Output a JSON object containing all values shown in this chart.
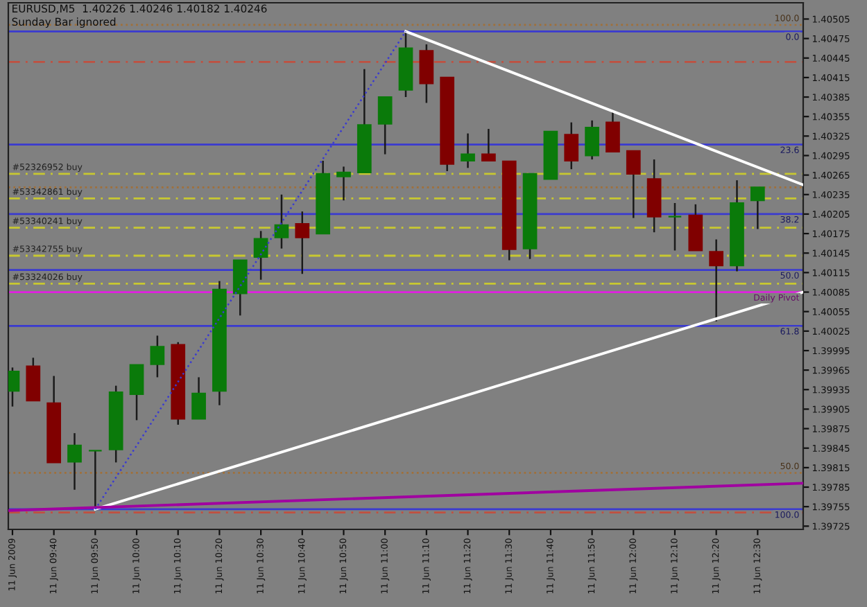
{
  "chart_data": {
    "type": "candlestick",
    "title": "EURUSD,M5  1.40226 1.40246 1.40182 1.40246",
    "subtitle": "Sunday Bar ignored",
    "x": [
      "2009-06-11T09:30",
      "2009-06-11T09:35",
      "2009-06-11T09:40",
      "2009-06-11T09:45",
      "2009-06-11T09:50",
      "2009-06-11T09:55",
      "2009-06-11T10:00",
      "2009-06-11T10:05",
      "2009-06-11T10:10",
      "2009-06-11T10:15",
      "2009-06-11T10:20",
      "2009-06-11T10:25",
      "2009-06-11T10:30",
      "2009-06-11T10:35",
      "2009-06-11T10:40",
      "2009-06-11T10:45",
      "2009-06-11T10:50",
      "2009-06-11T10:55",
      "2009-06-11T11:00",
      "2009-06-11T11:05",
      "2009-06-11T11:10",
      "2009-06-11T11:15",
      "2009-06-11T11:20",
      "2009-06-11T11:25",
      "2009-06-11T11:30",
      "2009-06-11T11:35",
      "2009-06-11T11:40",
      "2009-06-11T11:45",
      "2009-06-11T11:50",
      "2009-06-11T11:55",
      "2009-06-11T12:00",
      "2009-06-11T12:05",
      "2009-06-11T12:10",
      "2009-06-11T12:15",
      "2009-06-11T12:20",
      "2009-06-11T12:25",
      "2009-06-11T12:30"
    ],
    "ohlc": [
      [
        1.39933,
        1.39969,
        1.39909,
        1.39963
      ],
      [
        1.39971,
        1.39984,
        1.39918,
        1.39918
      ],
      [
        1.39914,
        1.39956,
        1.39823,
        1.39823
      ],
      [
        1.39824,
        1.39868,
        1.39781,
        1.39849
      ],
      [
        1.39841,
        1.39841,
        1.39751,
        1.39841
      ],
      [
        1.39843,
        1.39941,
        1.39823,
        1.39931
      ],
      [
        1.39928,
        1.39973,
        1.39888,
        1.39973
      ],
      [
        1.39974,
        1.40018,
        1.39954,
        1.40001
      ],
      [
        1.40004,
        1.40008,
        1.39881,
        1.3989
      ],
      [
        1.3989,
        1.39954,
        1.3989,
        1.39929
      ],
      [
        1.39933,
        1.40102,
        1.39911,
        1.40089
      ],
      [
        1.40083,
        1.40134,
        1.40049,
        1.40134
      ],
      [
        1.40139,
        1.40179,
        1.40104,
        1.40167
      ],
      [
        1.40169,
        1.40235,
        1.40152,
        1.40188
      ],
      [
        1.4019,
        1.40209,
        1.40113,
        1.40169
      ],
      [
        1.40175,
        1.40287,
        1.40175,
        1.40267
      ],
      [
        1.40263,
        1.40278,
        1.40226,
        1.40269
      ],
      [
        1.40269,
        1.40428,
        1.40269,
        1.40342
      ],
      [
        1.40344,
        1.40385,
        1.40297,
        1.40385
      ],
      [
        1.40396,
        1.40486,
        1.40385,
        1.4046
      ],
      [
        1.40456,
        1.40466,
        1.40376,
        1.40406
      ],
      [
        1.40415,
        1.40415,
        1.40271,
        1.40282
      ],
      [
        1.40287,
        1.40329,
        1.40276,
        1.40297
      ],
      [
        1.40297,
        1.40336,
        1.40287,
        1.40287
      ],
      [
        1.40286,
        1.40286,
        1.40134,
        1.40151
      ],
      [
        1.40152,
        1.40267,
        1.40136,
        1.40267
      ],
      [
        1.40259,
        1.40332,
        1.40259,
        1.40332
      ],
      [
        1.40327,
        1.40346,
        1.40274,
        1.40287
      ],
      [
        1.40295,
        1.40349,
        1.40289,
        1.40338
      ],
      [
        1.40346,
        1.40362,
        1.40301,
        1.40301
      ],
      [
        1.40302,
        1.40302,
        1.40199,
        1.40267
      ],
      [
        1.40259,
        1.40289,
        1.40177,
        1.40201
      ],
      [
        1.40201,
        1.40222,
        1.40149,
        1.40201
      ],
      [
        1.40203,
        1.4022,
        1.40149,
        1.40149
      ],
      [
        1.40147,
        1.40166,
        1.4004,
        1.40126
      ],
      [
        1.40126,
        1.40257,
        1.40117,
        1.40222
      ],
      [
        1.40226,
        1.40246,
        1.40182,
        1.40246
      ]
    ],
    "colors": [
      "#0a7a0a",
      "#800000",
      "#800000",
      "#0a7a0a",
      "#0a7a0a",
      "#0a7a0a",
      "#0a7a0a",
      "#0a7a0a",
      "#800000",
      "#0a7a0a",
      "#0a7a0a",
      "#0a7a0a",
      "#0a7a0a",
      "#0a7a0a",
      "#800000",
      "#0a7a0a",
      "#0a7a0a",
      "#0a7a0a",
      "#0a7a0a",
      "#0a7a0a",
      "#800000",
      "#800000",
      "#0a7a0a",
      "#800000",
      "#800000",
      "#0a7a0a",
      "#0a7a0a",
      "#800000",
      "#0a7a0a",
      "#800000",
      "#800000",
      "#800000",
      "#0a7a0a",
      "#800000",
      "#800000",
      "#0a7a0a",
      "#0a7a0a"
    ],
    "series": [
      {
        "type": "line",
        "color": "#ffffff",
        "line_style": "solid",
        "x": [
          "2009-06-11T11:05",
          "2009-06-11T12:41"
        ],
        "values": [
          1.40486,
          1.4025
        ]
      },
      {
        "type": "line",
        "color": "#ffffff",
        "line_style": "solid",
        "x": [
          "2009-06-11T09:50",
          "2009-06-11T12:41"
        ],
        "values": [
          1.39751,
          1.40085
        ]
      },
      {
        "type": "line",
        "color": "#a000a0",
        "line_style": "solid",
        "x": [
          "2009-06-11T09:29",
          "2009-06-11T12:41"
        ],
        "values": [
          1.39749,
          1.39791
        ]
      },
      {
        "type": "line",
        "color": "#3a3ad0",
        "line_style": "dotted",
        "x": [
          "2009-06-11T09:50",
          "2009-06-11T11:05"
        ],
        "values": [
          1.39751,
          1.40486
        ]
      }
    ],
    "ref_lines": [
      {
        "axis": "y",
        "value": 1.40496,
        "color": "#a0703a",
        "line_style": "dotted"
      },
      {
        "axis": "y",
        "value": 1.40486,
        "color": "#3a3ad0",
        "line_style": "solid"
      },
      {
        "axis": "y",
        "value": 1.40439,
        "color": "#c05040",
        "line_style": "dashed"
      },
      {
        "axis": "y",
        "value": 1.40312,
        "color": "#3a3ad0",
        "line_style": "solid"
      },
      {
        "axis": "y",
        "value": 1.40267,
        "label": "#52326952 buy",
        "color": "#c8c830",
        "line_style": "dashed"
      },
      {
        "axis": "y",
        "value": 1.40246,
        "color": "#a0703a",
        "line_style": "dotted"
      },
      {
        "axis": "y",
        "value": 1.40229,
        "label": "#53342861 buy",
        "color": "#c8c830",
        "line_style": "dashed"
      },
      {
        "axis": "y",
        "value": 1.40205,
        "color": "#3a3ad0",
        "line_style": "solid"
      },
      {
        "axis": "y",
        "value": 1.40184,
        "label": "#53340241 buy",
        "color": "#c8c830",
        "line_style": "dashed"
      },
      {
        "axis": "y",
        "value": 1.40141,
        "label": "#53342755 buy",
        "color": "#c8c830",
        "line_style": "dashed"
      },
      {
        "axis": "y",
        "value": 1.40119,
        "color": "#3a3ad0",
        "line_style": "solid"
      },
      {
        "axis": "y",
        "value": 1.40098,
        "label": "#53324026 buy",
        "color": "#c8c830",
        "line_style": "dashed"
      },
      {
        "axis": "y",
        "value": 1.40085,
        "label": "Daily Pivot",
        "color": "#e020e0",
        "line_style": "solid"
      },
      {
        "axis": "y",
        "value": 1.40033,
        "color": "#3a3ad0",
        "line_style": "solid"
      },
      {
        "axis": "y",
        "value": 1.39807,
        "color": "#a0703a",
        "line_style": "dotted"
      },
      {
        "axis": "y",
        "value": 1.39751,
        "color": "#3a3ad0",
        "line_style": "solid"
      },
      {
        "axis": "y",
        "value": 1.39746,
        "color": "#c05040",
        "line_style": "dashed"
      }
    ],
    "annotations": [
      {
        "text": "100.0",
        "x": "2009-06-11T12:41",
        "y": 1.40496
      },
      {
        "text": "0.0",
        "x": "2009-06-11T12:41",
        "y": 1.40486
      },
      {
        "text": "23.6",
        "x": "2009-06-11T12:41",
        "y": 1.40312
      },
      {
        "text": "38.2",
        "x": "2009-06-11T12:41",
        "y": 1.40205
      },
      {
        "text": "50.0",
        "x": "2009-06-11T12:41",
        "y": 1.40119
      },
      {
        "text": "61.8",
        "x": "2009-06-11T12:41",
        "y": 1.40033
      },
      {
        "text": "50.0",
        "x": "2009-06-11T12:41",
        "y": 1.39807
      },
      {
        "text": "100.0",
        "x": "2009-06-11T12:41",
        "y": 1.39751
      }
    ],
    "xlim": [
      "2009-06-11T09:29",
      "2009-06-11T12:41"
    ],
    "xticks": [
      {
        "value": "2009-06-11T09:30",
        "label": "11 Jun 2009"
      },
      {
        "value": "2009-06-11T09:40",
        "label": "11 Jun 09:40"
      },
      {
        "value": "2009-06-11T09:50",
        "label": "11 Jun 09:50"
      },
      {
        "value": "2009-06-11T10:00",
        "label": "11 Jun 10:00"
      },
      {
        "value": "2009-06-11T10:10",
        "label": "11 Jun 10:10"
      },
      {
        "value": "2009-06-11T10:20",
        "label": "11 Jun 10:20"
      },
      {
        "value": "2009-06-11T10:30",
        "label": "11 Jun 10:30"
      },
      {
        "value": "2009-06-11T10:40",
        "label": "11 Jun 10:40"
      },
      {
        "value": "2009-06-11T10:50",
        "label": "11 Jun 10:50"
      },
      {
        "value": "2009-06-11T11:00",
        "label": "11 Jun 11:00"
      },
      {
        "value": "2009-06-11T11:10",
        "label": "11 Jun 11:10"
      },
      {
        "value": "2009-06-11T11:20",
        "label": "11 Jun 11:20"
      },
      {
        "value": "2009-06-11T11:30",
        "label": "11 Jun 11:30"
      },
      {
        "value": "2009-06-11T11:40",
        "label": "11 Jun 11:40"
      },
      {
        "value": "2009-06-11T11:50",
        "label": "11 Jun 11:50"
      },
      {
        "value": "2009-06-11T12:00",
        "label": "11 Jun 12:00"
      },
      {
        "value": "2009-06-11T12:10",
        "label": "11 Jun 12:10"
      },
      {
        "value": "2009-06-11T12:20",
        "label": "11 Jun 12:20"
      },
      {
        "value": "2009-06-11T12:30",
        "label": "11 Jun 12:30"
      }
    ],
    "ylim": [
      1.3972,
      1.4053
    ],
    "yticks": [
      1.39725,
      1.39755,
      1.39785,
      1.39815,
      1.39845,
      1.39875,
      1.39905,
      1.39935,
      1.39965,
      1.39995,
      1.40025,
      1.40055,
      1.40085,
      1.40115,
      1.40145,
      1.40175,
      1.40205,
      1.40235,
      1.40265,
      1.40295,
      1.40325,
      1.40355,
      1.40385,
      1.40415,
      1.40445,
      1.40475,
      1.40505
    ],
    "grid": false,
    "legend": false
  }
}
